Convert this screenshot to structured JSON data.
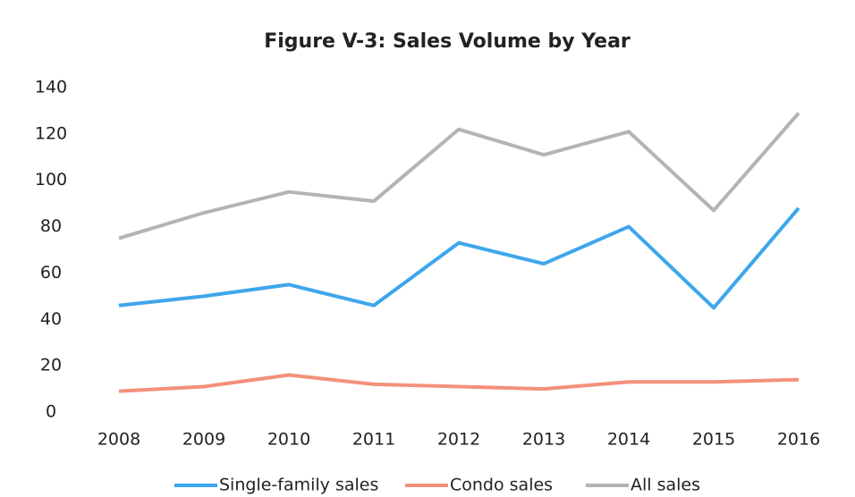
{
  "chart_data": {
    "type": "line",
    "title": "Figure V-3: Sales Volume by Year",
    "categories": [
      "2008",
      "2009",
      "2010",
      "2011",
      "2012",
      "2013",
      "2014",
      "2015",
      "2016"
    ],
    "series": [
      {
        "name": "Single-family sales",
        "color": "#3ea6ec",
        "values": [
          46,
          50,
          55,
          46,
          73,
          64,
          80,
          45,
          88
        ]
      },
      {
        "name": "Condo sales",
        "color": "#f4907a",
        "values": [
          9,
          11,
          16,
          12,
          11,
          10,
          13,
          13,
          14
        ]
      },
      {
        "name": "All sales",
        "color": "#b4b4b4",
        "values": [
          75,
          86,
          95,
          91,
          122,
          111,
          121,
          87,
          129
        ]
      }
    ],
    "ylim": [
      0,
      140
    ],
    "yticks": [
      0,
      20,
      40,
      60,
      80,
      100,
      120,
      140
    ],
    "grid": false,
    "legend": "bottom"
  }
}
